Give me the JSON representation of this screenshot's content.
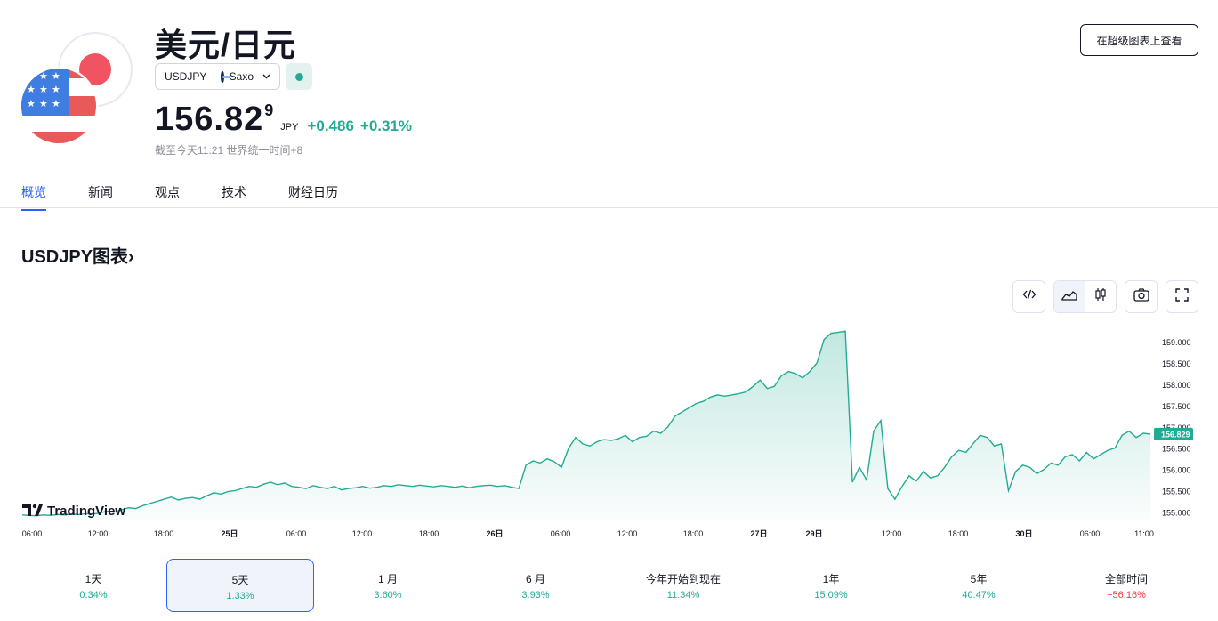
{
  "header": {
    "title": "美元/日元",
    "symbol": "USDJPY",
    "separator": "·",
    "exchange": "Saxo",
    "price_main": "156.82",
    "price_sup": "9",
    "currency": "JPY",
    "change_abs": "+0.486",
    "change_pct": "+0.31%",
    "asof": "截至今天11:21 世界统一时间+8",
    "super_chart_label": "在超级图表上查看"
  },
  "tabs": [
    {
      "label": "概览",
      "active": true
    },
    {
      "label": "新闻"
    },
    {
      "label": "观点"
    },
    {
      "label": "技术"
    },
    {
      "label": "财经日历"
    }
  ],
  "chart_section": {
    "title": "USDJPY图表",
    "title_arrow": "›",
    "watermark": "TradingView"
  },
  "colors": {
    "accent": "#2962ff",
    "positive": "#22ab94",
    "negative": "#f23645",
    "line": "#22ab94"
  },
  "chart_data": {
    "type": "area",
    "x_ticks": [
      "06:00",
      "12:00",
      "18:00",
      "25日",
      "06:00",
      "12:00",
      "18:00",
      "26日",
      "06:00",
      "12:00",
      "18:00",
      "27日",
      "29日",
      "12:00",
      "18:00",
      "30日",
      "06:00",
      "11:00"
    ],
    "y_ticks": [
      "159.000",
      "158.500",
      "158.000",
      "157.500",
      "157.000",
      "156.500",
      "156.000",
      "155.500",
      "155.000"
    ],
    "ylim": [
      154.8,
      159.4
    ],
    "last_price_label": "156.829",
    "values": [
      154.93,
      154.92,
      154.91,
      154.93,
      154.92,
      154.94,
      154.93,
      154.95,
      154.94,
      154.96,
      154.95,
      154.98,
      155.02,
      155.0,
      155.05,
      155.1,
      155.08,
      155.15,
      155.2,
      155.25,
      155.3,
      155.35,
      155.28,
      155.32,
      155.34,
      155.3,
      155.38,
      155.45,
      155.42,
      155.48,
      155.5,
      155.55,
      155.6,
      155.58,
      155.65,
      155.7,
      155.64,
      155.68,
      155.6,
      155.58,
      155.55,
      155.62,
      155.58,
      155.55,
      155.6,
      155.52,
      155.55,
      155.57,
      155.6,
      155.56,
      155.58,
      155.62,
      155.6,
      155.64,
      155.62,
      155.6,
      155.63,
      155.61,
      155.59,
      155.62,
      155.6,
      155.58,
      155.61,
      155.57,
      155.6,
      155.62,
      155.63,
      155.6,
      155.62,
      155.58,
      155.55,
      156.1,
      156.2,
      156.15,
      156.25,
      156.18,
      156.05,
      156.5,
      156.75,
      156.6,
      156.55,
      156.65,
      156.7,
      156.68,
      156.72,
      156.8,
      156.65,
      156.75,
      156.78,
      156.9,
      156.85,
      157.0,
      157.25,
      157.35,
      157.45,
      157.55,
      157.6,
      157.7,
      157.75,
      157.72,
      157.75,
      157.78,
      157.82,
      157.95,
      158.1,
      157.9,
      157.95,
      158.2,
      158.3,
      158.25,
      158.15,
      158.3,
      158.5,
      159.05,
      159.2,
      159.22,
      159.25,
      155.7,
      156.05,
      155.75,
      156.9,
      157.15,
      155.55,
      155.3,
      155.6,
      155.85,
      155.72,
      155.95,
      155.8,
      155.85,
      156.05,
      156.3,
      156.45,
      156.4,
      156.6,
      156.8,
      156.75,
      156.55,
      156.6,
      155.5,
      155.95,
      156.1,
      156.05,
      155.9,
      156.0,
      156.15,
      156.1,
      156.3,
      156.35,
      156.2,
      156.4,
      156.25,
      156.35,
      156.45,
      156.5,
      156.8,
      156.9,
      156.75,
      156.85,
      156.83
    ]
  },
  "periods": [
    {
      "label": "1天",
      "value": "0.34%",
      "neg": false
    },
    {
      "label": "5天",
      "value": "1.33%",
      "neg": false,
      "active": true
    },
    {
      "label": "1 月",
      "value": "3.60%",
      "neg": false
    },
    {
      "label": "6 月",
      "value": "3.93%",
      "neg": false
    },
    {
      "label": "今年开始到现在",
      "value": "11.34%",
      "neg": false
    },
    {
      "label": "1年",
      "value": "15.09%",
      "neg": false
    },
    {
      "label": "5年",
      "value": "40.47%",
      "neg": false
    },
    {
      "label": "全部时间",
      "value": "−56.16%",
      "neg": true
    }
  ]
}
